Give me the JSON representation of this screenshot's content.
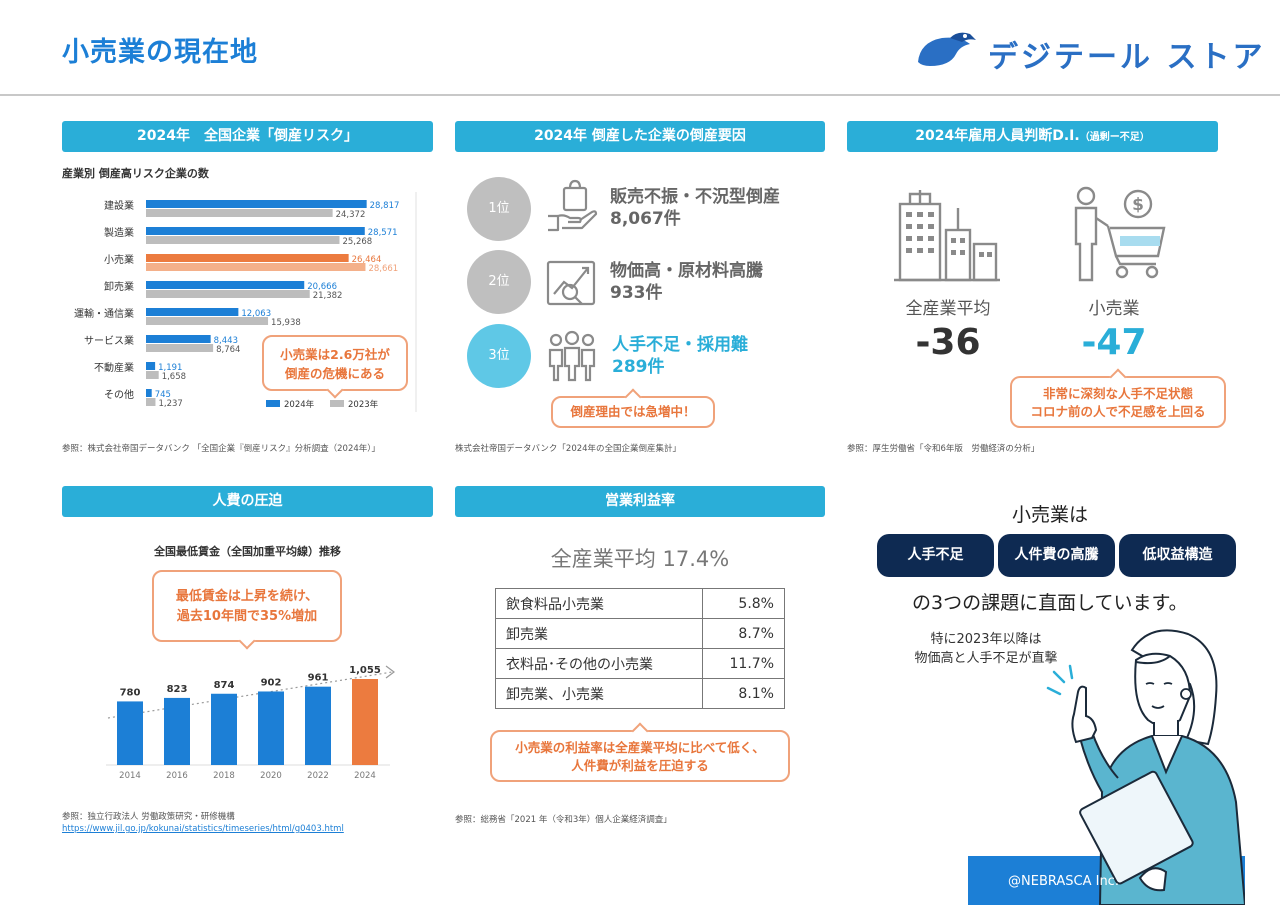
{
  "header": {
    "title": "小売業の現在地",
    "logo_text": "デジテール ストア"
  },
  "colors": {
    "accent_blue": "#1c7fd6",
    "section_teal": "#2aaed8",
    "orange": "#e8763c",
    "gray_bar": "#bdbdbd",
    "navy": "#0e2a52"
  },
  "panel1": {
    "header": "2024年　全国企業「倒産リスク」",
    "subtitle": "産業別 倒産高リスク企業の数",
    "callout": [
      "小売業は2.6万社が",
      "倒産の危機にある"
    ],
    "source": "参照：株式会社帝国データバンク 「全国企業『倒産リスク』分析調査（2024年）」"
  },
  "chart_data": {
    "type": "bar",
    "orientation": "horizontal",
    "categories": [
      "建設業",
      "製造業",
      "小売業",
      "卸売業",
      "運輸・通信業",
      "サービス業",
      "不動産業",
      "その他"
    ],
    "series": [
      {
        "name": "2024年",
        "values": [
          28817,
          28571,
          26464,
          20666,
          12063,
          8443,
          1191,
          745
        ],
        "labels": [
          "28,817",
          "28,571",
          "26,464",
          "20,666",
          "12,063",
          "8,443",
          "1,191",
          "745"
        ]
      },
      {
        "name": "2023年",
        "values": [
          24372,
          25268,
          28661,
          21382,
          15938,
          8764,
          1658,
          1237
        ],
        "labels": [
          "24,372",
          "25,268",
          "28,661",
          "21,382",
          "15,938",
          "8,764",
          "1,658",
          "1,237"
        ]
      }
    ],
    "highlight_category": "小売業",
    "xlim": [
      0,
      35000
    ],
    "legend": [
      "2024年",
      "2023年"
    ],
    "legend_position": "bottom-right"
  },
  "panel2": {
    "header": "2024年 倒産した企業の倒産要因",
    "ranks": [
      {
        "rank": "1位",
        "reason": "販売不振・不況型倒産",
        "count": "8,067件"
      },
      {
        "rank": "2位",
        "reason": "物価高・原材料高騰",
        "count": "933件"
      },
      {
        "rank": "3位",
        "reason": "人手不足・採用難",
        "count": "289件"
      }
    ],
    "callout": "倒産理由では急増中！",
    "source": "株式会社帝国データバンク「2024年の全国企業倒産集計」"
  },
  "panel3": {
    "header_main": "2024年雇用人員判断D.I.",
    "header_small": "（過剰ー不足）",
    "all_label": "全産業平均",
    "all_value": "-36",
    "retail_label": "小売業",
    "retail_value": "-47",
    "callout": [
      "非常に深刻な人手不足状態",
      "コロナ前の人で不足感を上回る"
    ],
    "source": "参照：厚生労働省「令和6年版　労働経済の分析」"
  },
  "panel4": {
    "header": "人費の圧迫",
    "subtitle": "全国最低賃金（全国加重平均線）推移",
    "callout": [
      "最低賃金は上昇を続け、",
      "過去10年間で35%増加"
    ],
    "source_line1": "参照：独立行政法人 労働政策研究・研修機構",
    "source_link": "https://www.jil.go.jp/kokunai/statistics/timeseries/html/g0403.html",
    "wage_chart": {
      "type": "bar",
      "categories": [
        "2014",
        "2016",
        "2018",
        "2020",
        "2022",
        "2024"
      ],
      "values": [
        780,
        823,
        874,
        902,
        961,
        1055
      ],
      "labels": [
        "780",
        "823",
        "874",
        "902",
        "961",
        "1,055"
      ],
      "highlight_category": "2024"
    }
  },
  "panel5": {
    "header": "営業利益率",
    "avg_title": "全産業平均 17.4%",
    "rows": [
      {
        "name": "飲食料品小売業",
        "value": "5.8%"
      },
      {
        "name": "卸売業",
        "value": "8.7%"
      },
      {
        "name": "衣料品･その他の小売業",
        "value": "11.7%"
      },
      {
        "name": "卸売業、小売業",
        "value": "8.1%"
      }
    ],
    "callout": [
      "小売業の利益率は全産業平均に比べて低く、",
      "人件費が利益を圧迫する"
    ],
    "source": "参照：総務省「2021 年（令和3年）個人企業経済調査」"
  },
  "panel6": {
    "title": "小売業は",
    "pills": [
      "人手不足",
      "人件費の高騰",
      "低収益構造"
    ],
    "foot": "の3つの課題に直面しています。",
    "note": [
      "特に2023年以降は",
      "物価高と人手不足が直撃"
    ],
    "credit": "@NEBRASCA Inc."
  }
}
